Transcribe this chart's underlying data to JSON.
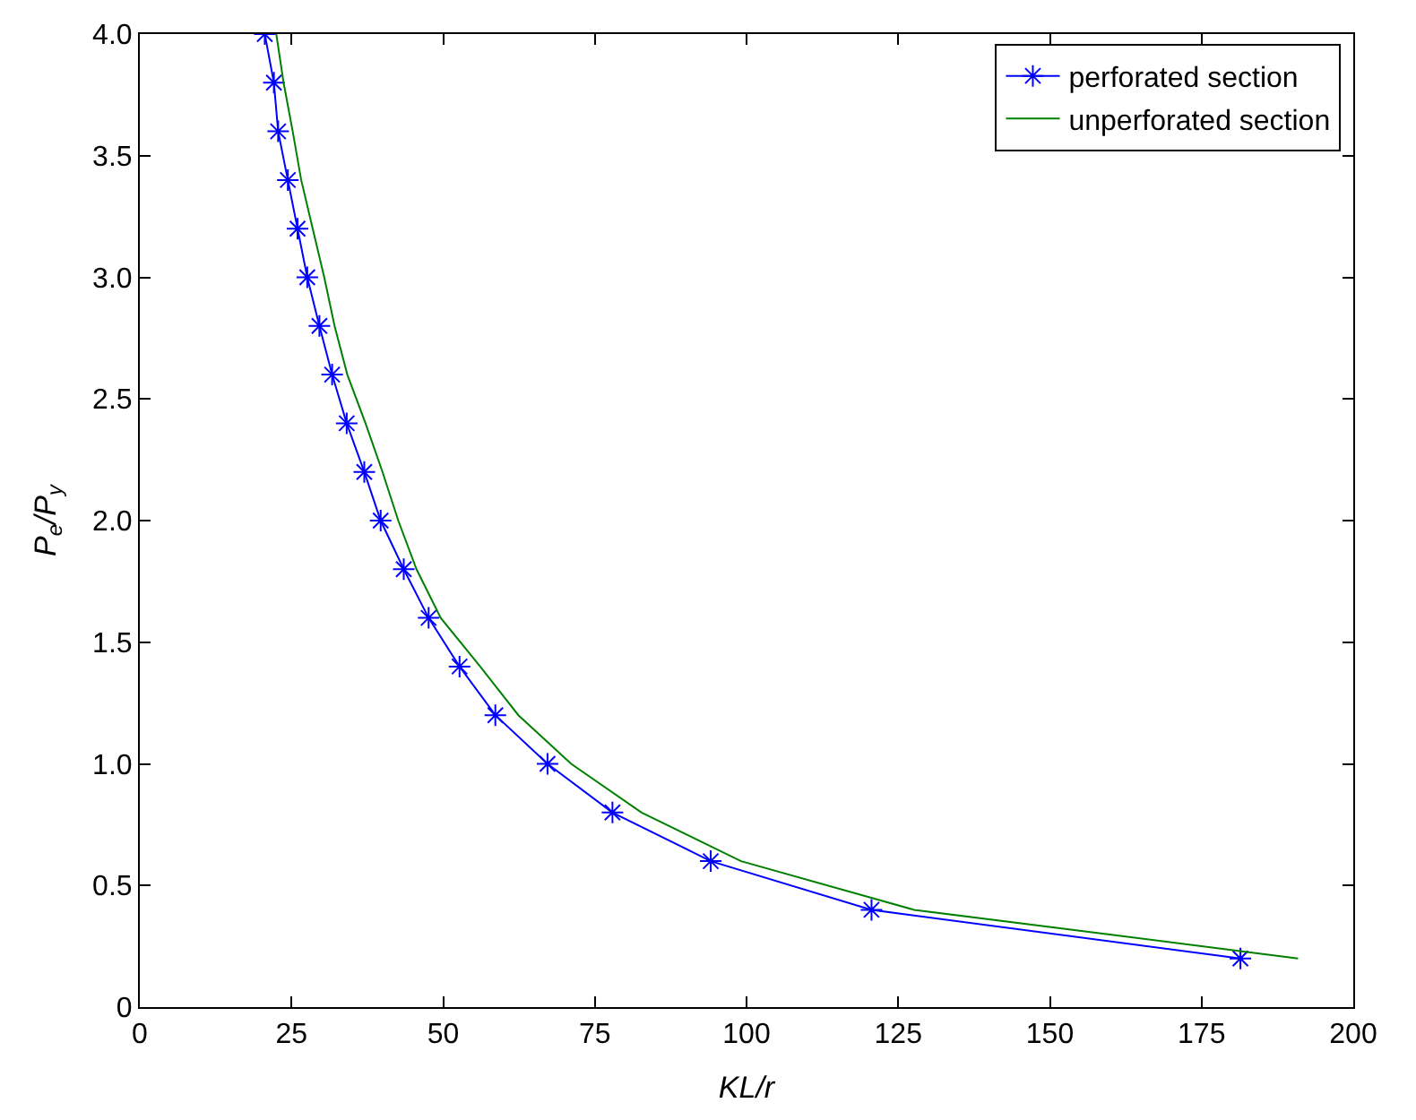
{
  "chart_data": {
    "type": "line",
    "xlabel": "KL/r",
    "ylabel": "P$_{e}$/P$_{y}$",
    "xlim": [
      0,
      200
    ],
    "xticks": [
      0,
      25,
      50,
      75,
      100,
      125,
      150,
      175,
      200
    ],
    "ylim": [
      0,
      4
    ],
    "yticks": [
      {
        "value": 0,
        "label": "0"
      },
      {
        "value": 0.5,
        "label": "0.5"
      },
      {
        "value": 1,
        "label": "1.0"
      },
      {
        "value": 1.5,
        "label": "1.5"
      },
      {
        "value": 2,
        "label": "2.0"
      },
      {
        "value": 2.5,
        "label": "2.5"
      },
      {
        "value": 3,
        "label": "3.0"
      },
      {
        "value": 3.5,
        "label": "3.5"
      },
      {
        "value": 4,
        "label": "4.0"
      }
    ],
    "legend": "top right",
    "series": [
      {
        "name": "perforated section",
        "color": "#0000ff",
        "marker": "cross",
        "x": [
          20.6,
          22.1,
          22.8,
          24.4,
          26.0,
          27.6,
          29.6,
          31.7,
          34.1,
          37.0,
          39.7,
          43.5,
          47.6,
          52.7,
          58.6,
          67.2,
          77.9,
          94.1,
          120.6,
          181.4
        ],
        "values": [
          4.0,
          3.8,
          3.6,
          3.4,
          3.2,
          3.0,
          2.8,
          2.6,
          2.4,
          2.2,
          2.0,
          1.8,
          1.6,
          1.4,
          1.2,
          1.0,
          0.8,
          0.6,
          0.4,
          0.2
        ]
      },
      {
        "name": "unperforated section",
        "color": "#008000",
        "marker": "none",
        "x": [
          22.5,
          23.7,
          25.2,
          26.6,
          28.5,
          30.4,
          32.1,
          34.2,
          37.2,
          40.0,
          42.6,
          45.6,
          49.6,
          56.1,
          62.4,
          71.1,
          82.7,
          99.1,
          127.6,
          190.9
        ],
        "values": [
          4.0,
          3.8,
          3.6,
          3.4,
          3.2,
          3.0,
          2.8,
          2.6,
          2.4,
          2.2,
          2.0,
          1.8,
          1.6,
          1.4,
          1.2,
          1.0,
          0.8,
          0.6,
          0.4,
          0.2
        ]
      }
    ]
  }
}
